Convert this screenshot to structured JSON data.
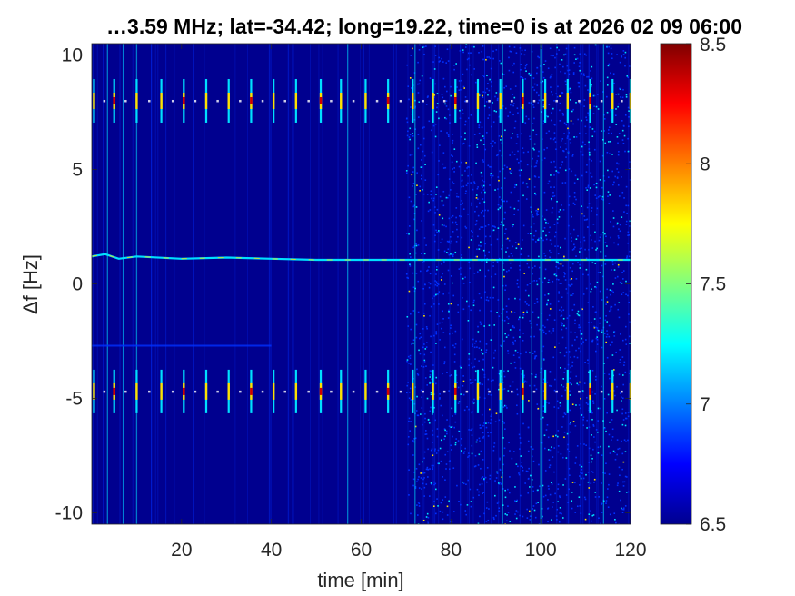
{
  "chart_data": {
    "type": "heatmap",
    "title": "…3.59 MHz;  lat=-34.42; long=19.22, time=0 is at 2026 02 09 06:00",
    "xlabel": "time [min]",
    "ylabel": "Δf [Hz]",
    "xlim": [
      0,
      120
    ],
    "ylim": [
      -10.5,
      10.5
    ],
    "x_ticks": [
      "20",
      "40",
      "60",
      "80",
      "100",
      "120"
    ],
    "x_tick_values": [
      20,
      40,
      60,
      80,
      100,
      120
    ],
    "y_ticks": [
      "10",
      "5",
      "0",
      "-5",
      "-10"
    ],
    "y_tick_values": [
      10,
      5,
      0,
      -5,
      -10
    ],
    "colorbar": {
      "range": [
        6.5,
        8.5
      ],
      "ticks": [
        "8.5",
        "8",
        "7.5",
        "7",
        "6.5"
      ],
      "tick_values": [
        8.5,
        8,
        7.5,
        7,
        6.5
      ],
      "colormap": "jet"
    },
    "colors": {
      "background": "#00008f",
      "weak": "#0030ff",
      "medium": "#00e0ff",
      "strong": "#ffe000",
      "peak": "#d00000"
    },
    "features": {
      "pulse_rows_df": [
        8,
        -4.7
      ],
      "pulse_times_min": [
        0.5,
        5,
        10,
        15.5,
        20.5,
        25.5,
        30.5,
        35.5,
        40.5,
        45.5,
        51,
        55.5,
        61,
        66,
        71.5,
        76,
        81,
        86,
        91,
        96,
        101,
        106,
        111,
        116,
        120
      ],
      "carrier_trace": {
        "t": [
          0,
          3,
          6,
          10,
          20,
          30,
          40,
          50,
          60,
          70,
          80,
          90,
          100,
          110,
          120
        ],
        "df": [
          1.2,
          1.3,
          1.1,
          1.2,
          1.1,
          1.15,
          1.1,
          1.05,
          1.05,
          1.05,
          1.05,
          1.05,
          1.05,
          1.05,
          1.05
        ]
      },
      "secondary_trace": {
        "t": [
          0,
          40
        ],
        "df": [
          -2.7,
          -2.7
        ]
      },
      "noise_onset_min": 70,
      "broadband_lines_min": [
        3.5,
        7,
        10,
        57,
        72,
        91.5,
        98,
        100,
        114
      ]
    }
  }
}
